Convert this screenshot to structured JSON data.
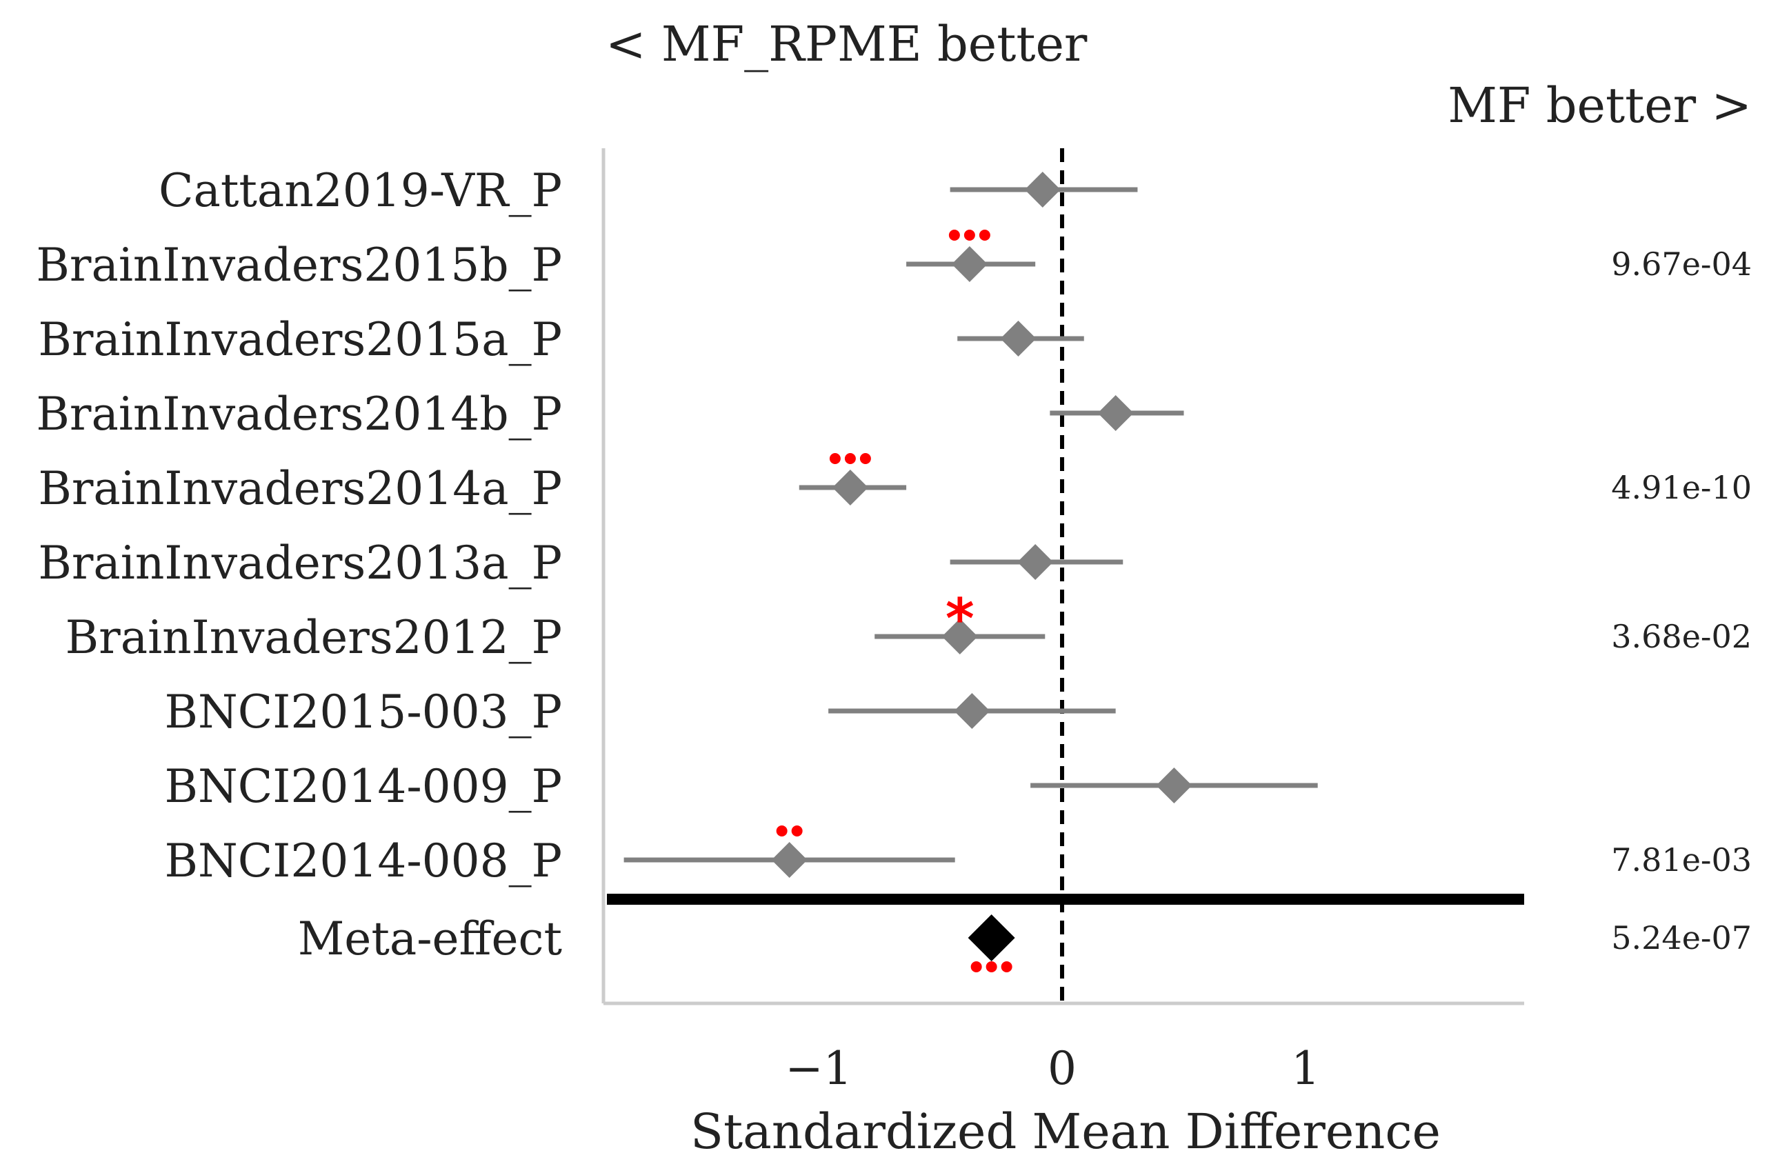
{
  "chart_data": {
    "type": "forest",
    "top_labels": {
      "left": "< MF_RPME better",
      "right": "MF better >"
    },
    "xlabel": "Standardized Mean Difference",
    "xlim": [
      -1.9,
      1.9
    ],
    "xticks": [
      -1,
      0,
      1
    ],
    "xtick_labels": [
      "−1",
      "0",
      "1"
    ],
    "reference_line": 0,
    "rows": [
      {
        "label": "Cattan2019-VR_P",
        "smd": -0.08,
        "ci_low": -0.46,
        "ci_high": 0.31,
        "stars": "",
        "p_value": ""
      },
      {
        "label": "BrainInvaders2015b_P",
        "smd": -0.38,
        "ci_low": -0.64,
        "ci_high": -0.11,
        "stars": "***",
        "p_value": "9.67e-04"
      },
      {
        "label": "BrainInvaders2015a_P",
        "smd": -0.18,
        "ci_low": -0.43,
        "ci_high": 0.09,
        "stars": "",
        "p_value": ""
      },
      {
        "label": "BrainInvaders2014b_P",
        "smd": 0.22,
        "ci_low": -0.05,
        "ci_high": 0.5,
        "stars": "",
        "p_value": ""
      },
      {
        "label": "BrainInvaders2014a_P",
        "smd": -0.87,
        "ci_low": -1.08,
        "ci_high": -0.64,
        "stars": "***",
        "p_value": "4.91e-10"
      },
      {
        "label": "BrainInvaders2013a_P",
        "smd": -0.11,
        "ci_low": -0.46,
        "ci_high": 0.25,
        "stars": "",
        "p_value": ""
      },
      {
        "label": "BrainInvaders2012_P",
        "smd": -0.42,
        "ci_low": -0.77,
        "ci_high": -0.07,
        "stars": "*",
        "p_value": "3.68e-02"
      },
      {
        "label": "BNCI2015-003_P",
        "smd": -0.37,
        "ci_low": -0.96,
        "ci_high": 0.22,
        "stars": "",
        "p_value": ""
      },
      {
        "label": "BNCI2014-009_P",
        "smd": 0.46,
        "ci_low": -0.13,
        "ci_high": 1.05,
        "stars": "",
        "p_value": ""
      },
      {
        "label": "BNCI2014-008_P",
        "smd": -1.12,
        "ci_low": -1.8,
        "ci_high": -0.44,
        "stars": "**",
        "p_value": "7.81e-03"
      }
    ],
    "meta": {
      "label": "Meta-effect",
      "smd": -0.29,
      "stars": "***",
      "p_value": "5.24e-07"
    },
    "colors": {
      "study": "#808080",
      "meta": "#000000",
      "stars": "#ff0000",
      "axis": "#cccccc",
      "text": "#222222"
    }
  }
}
